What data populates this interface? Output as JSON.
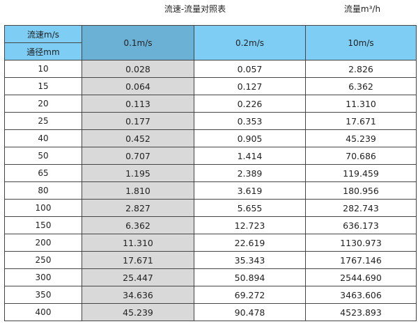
{
  "title": "流速-流量对照表",
  "unit": "流量m³/h",
  "header": {
    "speed_label": "流速m/s",
    "diameter_label": "通径mm",
    "cols": [
      "0.1m/s",
      "0.2m/s",
      "10m/s"
    ]
  },
  "colors": {
    "header": "#7dcdf4",
    "header_highlight": "#6bb1d6",
    "column_highlight": "#d9d9d9"
  },
  "rows": [
    [
      "10",
      "0.028",
      "0.057",
      "2.826"
    ],
    [
      "15",
      "0.064",
      "0.127",
      "6.362"
    ],
    [
      "20",
      "0.113",
      "0.226",
      "11.310"
    ],
    [
      "25",
      "0.177",
      "0.353",
      "17.671"
    ],
    [
      "40",
      "0.452",
      "0.905",
      "45.239"
    ],
    [
      "50",
      "0.707",
      "1.414",
      "70.686"
    ],
    [
      "65",
      "1.195",
      "2.389",
      "119.459"
    ],
    [
      "80",
      "1.810",
      "3.619",
      "180.956"
    ],
    [
      "100",
      "2.827",
      "5.655",
      "282.743"
    ],
    [
      "150",
      "6.362",
      "12.723",
      "636.173"
    ],
    [
      "200",
      "11.310",
      "22.619",
      "1130.973"
    ],
    [
      "250",
      "17.671",
      "35.343",
      "1767.146"
    ],
    [
      "300",
      "25.447",
      "50.894",
      "2544.690"
    ],
    [
      "350",
      "34.636",
      "69.272",
      "3463.606"
    ],
    [
      "400",
      "45.239",
      "90.478",
      "4523.893"
    ]
  ]
}
